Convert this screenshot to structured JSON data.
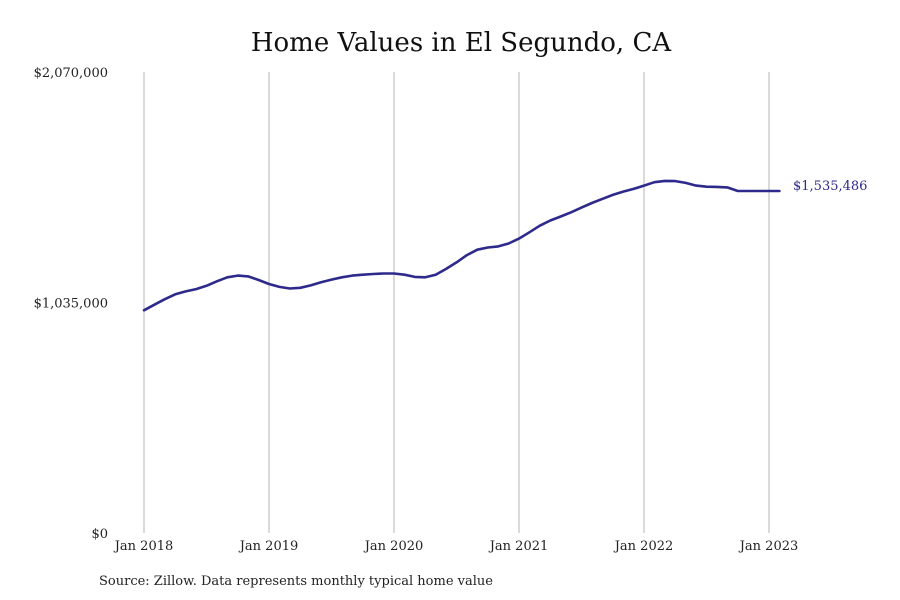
{
  "chart_data": {
    "type": "line",
    "title": "Home Values in El Segundo, CA",
    "source": "Source: Zillow. Data represents monthly typical home value",
    "xlabel": "",
    "ylabel": "",
    "ylim": [
      0,
      2070000
    ],
    "y_ticks": [
      {
        "value": 0,
        "label": "$0"
      },
      {
        "value": 1035000,
        "label": "$1,035,000"
      },
      {
        "value": 2070000,
        "label": "$2,070,000"
      }
    ],
    "x_ticks": [
      {
        "value": "2018-01",
        "label": "Jan 2018"
      },
      {
        "value": "2019-01",
        "label": "Jan 2019"
      },
      {
        "value": "2020-01",
        "label": "Jan 2020"
      },
      {
        "value": "2021-01",
        "label": "Jan 2021"
      },
      {
        "value": "2022-01",
        "label": "Jan 2022"
      },
      {
        "value": "2023-01",
        "label": "Jan 2023"
      }
    ],
    "x_range": [
      "2018-01",
      "2023-02"
    ],
    "grid": "vertical lines at each January",
    "line_color": "#2e2a8c",
    "end_label": "$1,535,486",
    "series": [
      {
        "x": [
          "2018-01",
          "2018-02",
          "2018-03",
          "2018-04",
          "2018-05",
          "2018-06",
          "2018-07",
          "2018-08",
          "2018-09",
          "2018-10",
          "2018-11",
          "2018-12",
          "2019-01",
          "2019-02",
          "2019-03",
          "2019-04",
          "2019-05",
          "2019-06",
          "2019-07",
          "2019-08",
          "2019-09",
          "2019-10",
          "2019-11",
          "2019-12",
          "2020-01",
          "2020-02",
          "2020-03",
          "2020-04",
          "2020-05",
          "2020-06",
          "2020-07",
          "2020-08",
          "2020-09",
          "2020-10",
          "2020-11",
          "2020-12",
          "2021-01",
          "2021-02",
          "2021-03",
          "2021-04",
          "2021-05",
          "2021-06",
          "2021-07",
          "2021-08",
          "2021-09",
          "2021-10",
          "2021-11",
          "2021-12",
          "2022-01",
          "2022-02",
          "2022-03",
          "2022-04",
          "2022-05",
          "2022-06",
          "2022-07",
          "2022-08",
          "2022-09",
          "2022-10",
          "2022-11",
          "2022-12",
          "2023-01",
          "2023-02"
        ],
        "values": [
          1000000,
          1025000,
          1050000,
          1072000,
          1085000,
          1095000,
          1110000,
          1130000,
          1148000,
          1156000,
          1152000,
          1136000,
          1118000,
          1105000,
          1098000,
          1101000,
          1112000,
          1126000,
          1138000,
          1148000,
          1156000,
          1160000,
          1163000,
          1165000,
          1165000,
          1160000,
          1150000,
          1148000,
          1160000,
          1186000,
          1215000,
          1248000,
          1272000,
          1282000,
          1287000,
          1300000,
          1322000,
          1350000,
          1380000,
          1403000,
          1421000,
          1440000,
          1461000,
          1482000,
          1500000,
          1518000,
          1533000,
          1545000,
          1560000,
          1575000,
          1581000,
          1580000,
          1572000,
          1560000,
          1555000,
          1554000,
          1552000,
          1535486,
          1535486,
          1535486,
          1535486,
          1535486
        ]
      }
    ]
  }
}
